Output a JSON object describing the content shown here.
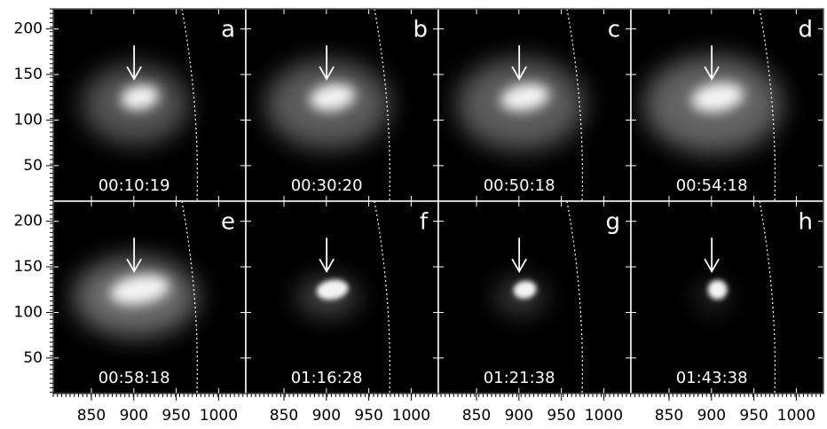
{
  "panels": [
    {
      "label": "a",
      "time": "00:10:19"
    },
    {
      "label": "b",
      "time": "00:30:20"
    },
    {
      "label": "c",
      "time": "00:50:18"
    },
    {
      "label": "d",
      "time": "00:54:18"
    },
    {
      "label": "e",
      "time": "00:58:18"
    },
    {
      "label": "f",
      "time": "01:16:28"
    },
    {
      "label": "g",
      "time": "01:21:38"
    },
    {
      "label": "h",
      "time": "01:43:38"
    }
  ],
  "xaxis": {
    "lim": [
      805,
      1032
    ],
    "ticks": [
      850,
      900,
      950,
      1000
    ]
  },
  "yaxis": {
    "lim": [
      11,
      222
    ],
    "ticks": [
      50,
      100,
      150,
      200
    ]
  }
}
